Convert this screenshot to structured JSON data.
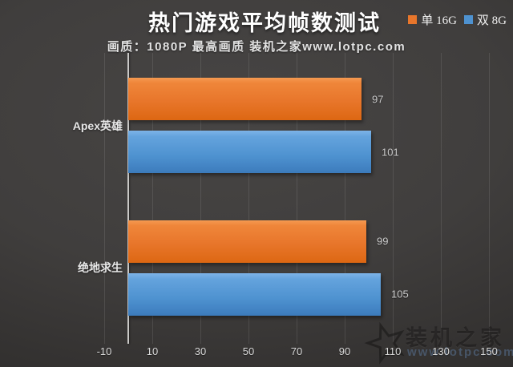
{
  "header": {
    "title": "热门游戏平均帧数测试",
    "subtitle": "画质：1080P 最高画质 装机之家www.lotpc.com"
  },
  "watermark": {
    "brand": "装机之家",
    "url": "www.lotpc.com"
  },
  "chart_data": {
    "type": "bar",
    "orientation": "horizontal",
    "title": "热门游戏平均帧数测试",
    "subtitle": "画质：1080P 最高画质 装机之家www.lotpc.com",
    "categories": [
      "Apex英雄",
      "绝地求生"
    ],
    "series": [
      {
        "name": "单 16G",
        "color": "#e8762b",
        "values": [
          97,
          99
        ]
      },
      {
        "name": "双 8G",
        "color": "#4e92d0",
        "values": [
          101,
          105
        ]
      }
    ],
    "xlim": [
      -10,
      150
    ],
    "xticks": [
      -10,
      10,
      30,
      50,
      70,
      90,
      110,
      130,
      150
    ],
    "bar_origin": 0,
    "grid": true,
    "legend_position": "top-right",
    "background": "#3c3a39",
    "axis_color": "#c9c8c6",
    "label_color": "#cbcbcb"
  }
}
